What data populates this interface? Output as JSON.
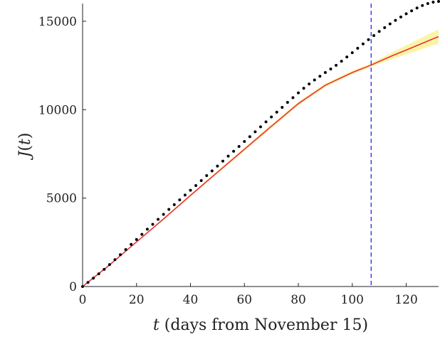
{
  "chart_data": {
    "type": "scatter",
    "xlabel_var": "t",
    "xlabel_text": " (days from November 15)",
    "ylabel_func": "J",
    "ylabel_open": "(",
    "ylabel_var": "t",
    "ylabel_close": ")",
    "xlim": [
      0,
      132
    ],
    "ylim": [
      0,
      16000
    ],
    "xticks": [
      0,
      20,
      40,
      60,
      80,
      100,
      120
    ],
    "yticks": [
      0,
      5000,
      10000,
      15000
    ],
    "grid": false,
    "legend": "none",
    "vertical_line": {
      "x": 107,
      "style": "dashed",
      "color": "#2a2af0"
    },
    "series": [
      {
        "kind": "observed",
        "marker": "dot",
        "color": "#000000",
        "x": [
          0,
          2,
          4,
          6,
          8,
          10,
          12,
          14,
          16,
          18,
          20,
          22,
          24,
          26,
          28,
          30,
          32,
          34,
          36,
          38,
          40,
          42,
          44,
          46,
          48,
          50,
          52,
          54,
          56,
          58,
          60,
          62,
          64,
          66,
          68,
          70,
          72,
          74,
          76,
          78,
          80,
          82,
          84,
          86,
          88,
          90,
          92,
          94,
          96,
          98,
          100,
          102,
          104,
          106,
          108,
          110,
          112,
          114,
          116,
          118,
          120,
          122,
          124,
          126,
          128,
          130,
          132
        ],
        "y": [
          0,
          230,
          470,
          720,
          970,
          1240,
          1520,
          1800,
          2090,
          2380,
          2660,
          2950,
          3240,
          3520,
          3800,
          4080,
          4360,
          4630,
          4900,
          5170,
          5440,
          5710,
          5990,
          6270,
          6540,
          6810,
          7090,
          7370,
          7650,
          7920,
          8200,
          8470,
          8750,
          9030,
          9310,
          9590,
          9860,
          10130,
          10410,
          10680,
          10950,
          11210,
          11450,
          11680,
          11890,
          12100,
          12300,
          12510,
          12740,
          12980,
          13220,
          13470,
          13720,
          13960,
          14190,
          14420,
          14640,
          14850,
          15050,
          15240,
          15420,
          15590,
          15750,
          15890,
          16000,
          16080,
          16120
        ]
      },
      {
        "kind": "fit",
        "color": "#e8323a",
        "band_color": "#f7ec6a",
        "x": [
          0,
          10,
          20,
          30,
          40,
          50,
          60,
          70,
          80,
          90,
          100,
          107,
          110,
          115,
          120,
          125,
          130,
          132
        ],
        "y": [
          0,
          1220,
          2520,
          3820,
          5150,
          6460,
          7760,
          9060,
          10340,
          11380,
          12100,
          12520,
          12730,
          13060,
          13370,
          13690,
          14010,
          14130
        ],
        "upper": [
          0,
          1240,
          2560,
          3880,
          5210,
          6540,
          7850,
          9160,
          10440,
          11480,
          12200,
          12620,
          12870,
          13260,
          13640,
          14010,
          14390,
          14540
        ],
        "lower": [
          0,
          1200,
          2480,
          3760,
          5090,
          6380,
          7670,
          8960,
          10240,
          11280,
          12000,
          12420,
          12600,
          12870,
          13120,
          13380,
          13640,
          13740
        ]
      }
    ]
  }
}
